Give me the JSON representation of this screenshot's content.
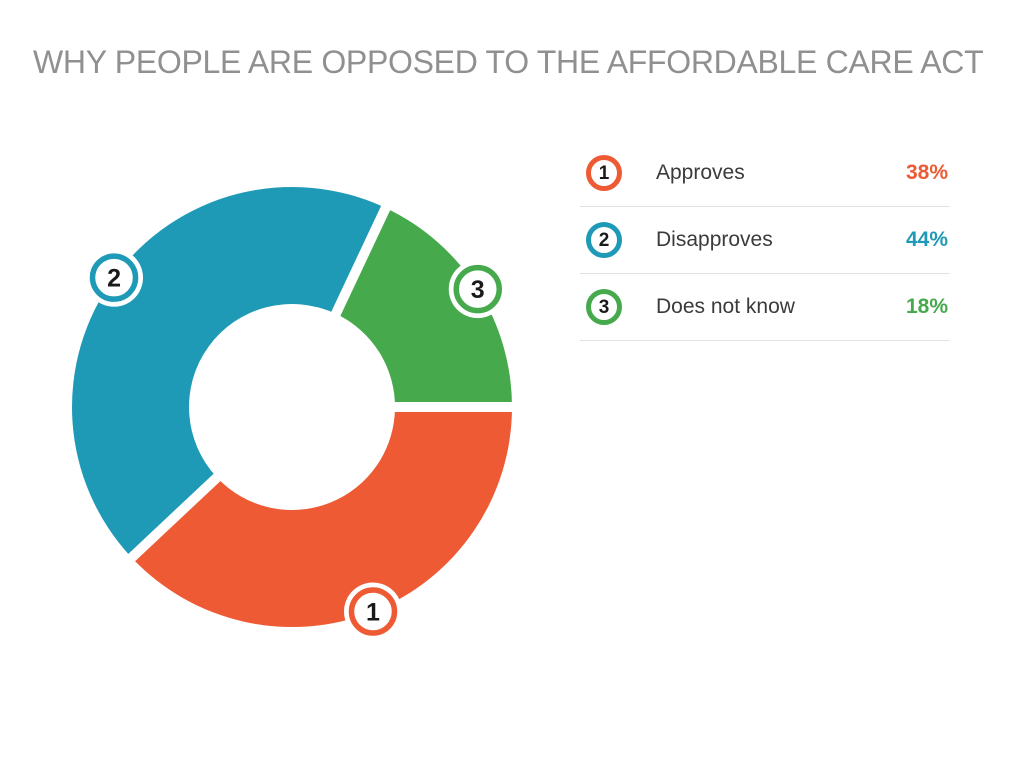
{
  "title": "WHY PEOPLE ARE OPPOSED TO THE AFFORDABLE CARE ACT",
  "chart_data": {
    "type": "pie",
    "subtype": "donut",
    "title": "WHY PEOPLE ARE OPPOSED TO THE AFFORDABLE CARE ACT",
    "categories": [
      "Approves",
      "Disapproves",
      "Does not know"
    ],
    "values": [
      38,
      44,
      18
    ],
    "unit": "%",
    "colors": [
      "#ee5a33",
      "#1f9ab6",
      "#46aa4d"
    ],
    "marker_numbers": [
      "1",
      "2",
      "3"
    ],
    "start_angle_deg": 0,
    "direction": "clockwise",
    "inner_radius_ratio": 0.47,
    "segment_gap_color": "#ffffff",
    "legend_position": "right"
  },
  "legend": {
    "items": [
      {
        "number": "1",
        "label": "Approves",
        "value": "38%",
        "color": "#ee5a33"
      },
      {
        "number": "2",
        "label": "Disapproves",
        "value": "44%",
        "color": "#1f9ab6"
      },
      {
        "number": "3",
        "label": "Does not know",
        "value": "18%",
        "color": "#46aa4d"
      }
    ]
  },
  "colors": {
    "background": "#ffffff",
    "title_text": "#909090",
    "legend_label": "#3b3b3b",
    "badge_number": "#1a1a1a",
    "separator": "#e2e2e2"
  }
}
